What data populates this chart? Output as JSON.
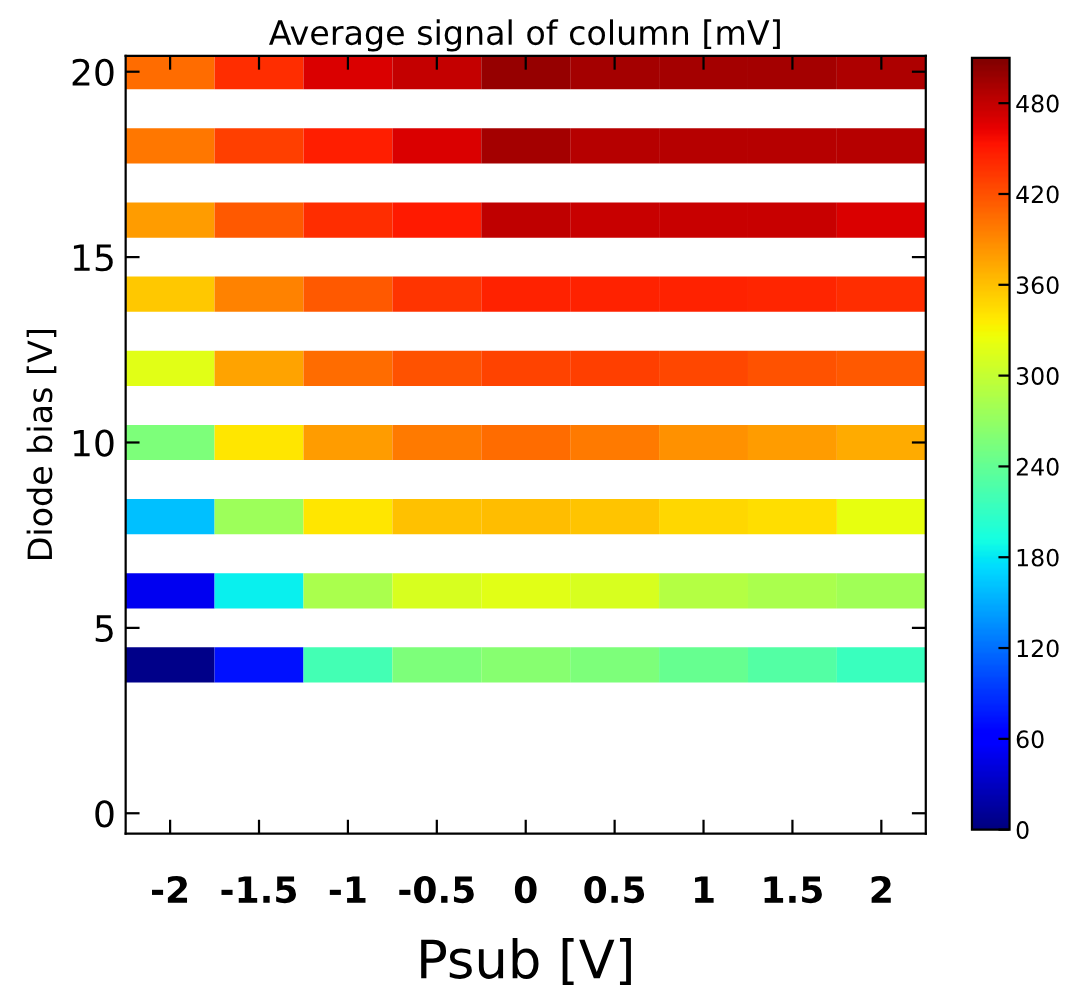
{
  "chart_data": {
    "type": "heatmap",
    "title": "Average signal of column [mV]",
    "xlabel": "Psub [V]",
    "ylabel": "Diode bias [V]",
    "clabel": null,
    "x": [
      -2,
      -1.5,
      -1,
      -0.5,
      0,
      0.5,
      1,
      1.5,
      2
    ],
    "xlim": [
      -2.25,
      2.25
    ],
    "xticks": [
      -2,
      -1.5,
      -1,
      -0.5,
      0,
      0.5,
      1,
      1.5,
      2
    ],
    "ylim": [
      -0.55,
      20.43
    ],
    "yticks": [
      0,
      5,
      10,
      15,
      20
    ],
    "y": [
      20,
      18,
      16,
      14,
      12,
      10,
      8,
      6,
      4
    ],
    "cells": [
      [
        405,
        440,
        470,
        480,
        500,
        493,
        493,
        493,
        490
      ],
      [
        400,
        430,
        447,
        470,
        493,
        485,
        485,
        485,
        485
      ],
      [
        380,
        415,
        440,
        450,
        482,
        477,
        477,
        477,
        470
      ],
      [
        355,
        393,
        415,
        435,
        445,
        445,
        445,
        443,
        440
      ],
      [
        318,
        375,
        405,
        420,
        428,
        430,
        425,
        420,
        415
      ],
      [
        255,
        340,
        380,
        398,
        405,
        398,
        385,
        380,
        372
      ],
      [
        160,
        275,
        340,
        360,
        362,
        357,
        347,
        343,
        322
      ],
      [
        50,
        185,
        283,
        312,
        318,
        312,
        290,
        283,
        278
      ],
      [
        5,
        72,
        220,
        255,
        262,
        255,
        243,
        230,
        215
      ]
    ],
    "clim": [
      0,
      510
    ],
    "cticks": [
      0,
      60,
      120,
      180,
      240,
      300,
      360,
      420,
      480
    ],
    "grid": false
  }
}
